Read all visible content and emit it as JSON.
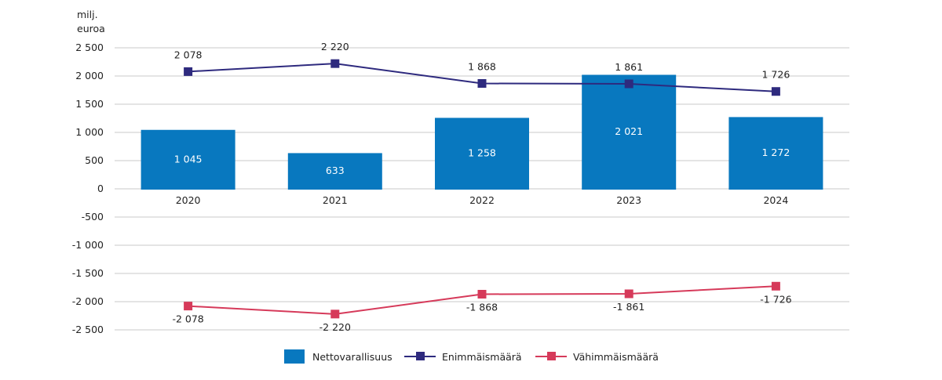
{
  "chart_data": {
    "type": "bar+line",
    "unit_label_line1": "milj.",
    "unit_label_line2": "euroa",
    "categories": [
      "2020",
      "2021",
      "2022",
      "2023",
      "2024"
    ],
    "ylim": [
      -2500,
      2500
    ],
    "yticks": [
      2500,
      2000,
      1500,
      1000,
      500,
      0,
      -500,
      -1000,
      -1500,
      -2000,
      -2500
    ],
    "ytick_labels": [
      "2 500",
      "2 000",
      "1 500",
      "1 000",
      "500",
      "0",
      "-500",
      "-1 000",
      "-1 500",
      "-2 000",
      "-2 500"
    ],
    "grid": true,
    "series": [
      {
        "name": "Nettovarallisuus",
        "kind": "bar",
        "color": "#0878bf",
        "values": [
          1045,
          633,
          1258,
          2021,
          1272
        ],
        "labels": [
          "1 045",
          "633",
          "1 258",
          "2 021",
          "1 272"
        ]
      },
      {
        "name": "Enimmäismäärä",
        "kind": "line",
        "color": "#2e2a7e",
        "values": [
          2078,
          2220,
          1868,
          1861,
          1726
        ],
        "labels": [
          "2 078",
          "2 220",
          "1 868",
          "1 861",
          "1 726"
        ]
      },
      {
        "name": "Vähimmäismäärä",
        "kind": "line",
        "color": "#d63a5a",
        "values": [
          -2078,
          -2220,
          -1868,
          -1861,
          -1726
        ],
        "labels": [
          "-2 078",
          "-2 220",
          "-1 868",
          "-1 861",
          "-1 726"
        ]
      }
    ],
    "legend_position": "bottom-center"
  }
}
